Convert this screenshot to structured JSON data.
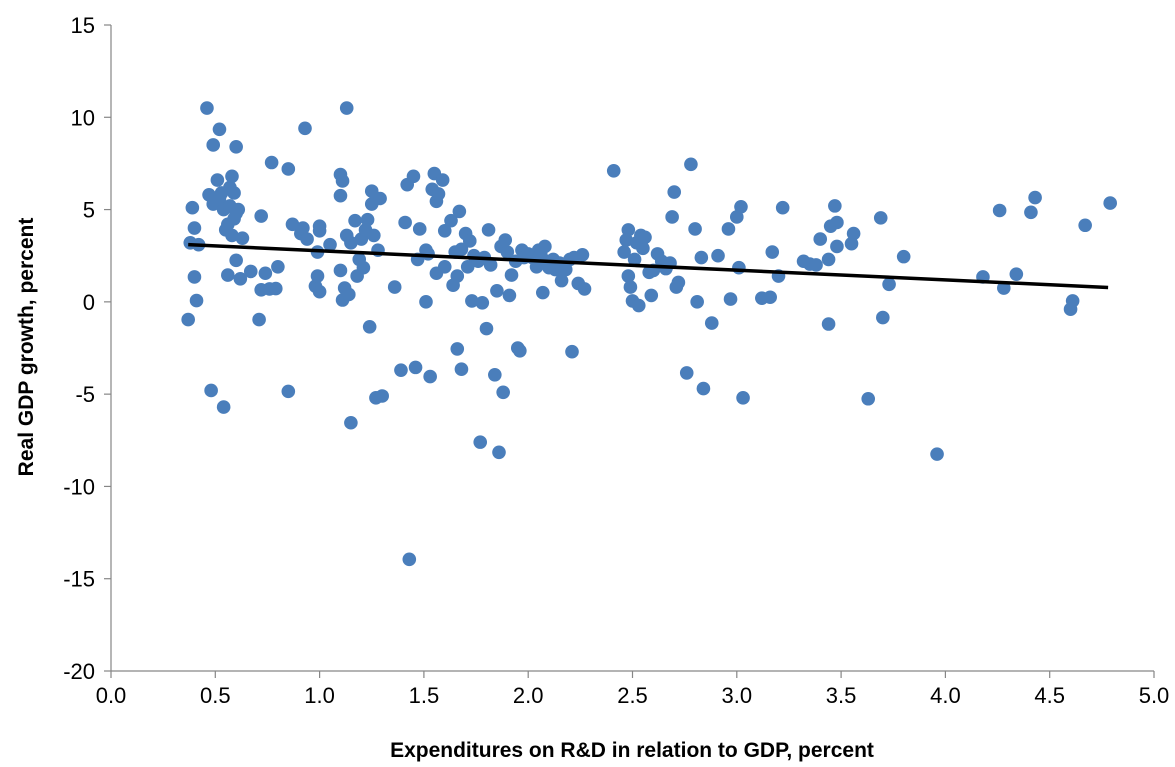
{
  "chart_data": {
    "type": "scatter",
    "title": "",
    "xlabel": "Expenditures on R&D in relation to GDP, percent",
    "ylabel": "Real GDP growth, percent",
    "xlim": [
      0,
      5
    ],
    "ylim": [
      -20,
      15
    ],
    "x_ticks": [
      "0.0",
      "0.5",
      "1.0",
      "1.5",
      "2.0",
      "2.5",
      "3.0",
      "3.5",
      "4.0",
      "4.5",
      "5.0"
    ],
    "y_ticks": [
      "15",
      "10",
      "5",
      "0",
      "-5",
      "-10",
      "-15",
      "-20"
    ],
    "grid": false,
    "legend": "none",
    "point_color": "#4a7ebb",
    "trendline_color": "#000000",
    "trendline": {
      "x": [
        0.37,
        4.78
      ],
      "y": [
        3.1,
        0.78
      ]
    },
    "points": [
      [
        0.37,
        -0.96
      ],
      [
        0.38,
        3.2
      ],
      [
        0.39,
        5.1
      ],
      [
        0.4,
        1.35
      ],
      [
        0.4,
        4.0
      ],
      [
        0.41,
        0.07
      ],
      [
        0.42,
        3.1
      ],
      [
        0.46,
        10.5
      ],
      [
        0.47,
        5.8
      ],
      [
        0.48,
        -4.8
      ],
      [
        0.49,
        8.5
      ],
      [
        0.49,
        5.3
      ],
      [
        0.51,
        6.6
      ],
      [
        0.52,
        9.35
      ],
      [
        0.52,
        5.6
      ],
      [
        0.53,
        5.9
      ],
      [
        0.54,
        5.0
      ],
      [
        0.54,
        -5.7
      ],
      [
        0.55,
        3.9
      ],
      [
        0.56,
        1.45
      ],
      [
        0.56,
        4.2
      ],
      [
        0.57,
        5.2
      ],
      [
        0.57,
        6.2
      ],
      [
        0.58,
        6.8
      ],
      [
        0.58,
        3.6
      ],
      [
        0.59,
        5.9
      ],
      [
        0.59,
        4.5
      ],
      [
        0.6,
        8.4
      ],
      [
        0.6,
        2.25
      ],
      [
        0.6,
        4.8
      ],
      [
        0.61,
        5.0
      ],
      [
        0.62,
        1.25
      ],
      [
        0.63,
        3.45
      ],
      [
        0.67,
        1.65
      ],
      [
        0.71,
        -0.96
      ],
      [
        0.72,
        4.65
      ],
      [
        0.72,
        0.65
      ],
      [
        0.74,
        1.55
      ],
      [
        0.76,
        0.7
      ],
      [
        0.77,
        7.55
      ],
      [
        0.79,
        0.72
      ],
      [
        0.8,
        1.9
      ],
      [
        0.85,
        7.2
      ],
      [
        0.85,
        -4.85
      ],
      [
        0.87,
        4.2
      ],
      [
        0.91,
        3.7
      ],
      [
        0.92,
        4.0
      ],
      [
        0.93,
        9.4
      ],
      [
        0.94,
        3.4
      ],
      [
        0.98,
        0.85
      ],
      [
        0.99,
        2.7
      ],
      [
        0.99,
        1.4
      ],
      [
        1.0,
        4.1
      ],
      [
        1.0,
        3.85
      ],
      [
        1.0,
        0.55
      ],
      [
        1.05,
        3.1
      ],
      [
        1.1,
        1.7
      ],
      [
        1.1,
        6.9
      ],
      [
        1.1,
        5.75
      ],
      [
        1.11,
        6.55
      ],
      [
        1.11,
        0.1
      ],
      [
        1.12,
        0.75
      ],
      [
        1.13,
        3.6
      ],
      [
        1.13,
        10.5
      ],
      [
        1.14,
        0.4
      ],
      [
        1.15,
        -6.55
      ],
      [
        1.15,
        3.2
      ],
      [
        1.17,
        4.4
      ],
      [
        1.18,
        1.4
      ],
      [
        1.19,
        2.3
      ],
      [
        1.2,
        3.4
      ],
      [
        1.21,
        1.85
      ],
      [
        1.22,
        3.9
      ],
      [
        1.23,
        4.45
      ],
      [
        1.24,
        -1.35
      ],
      [
        1.25,
        5.3
      ],
      [
        1.25,
        6.0
      ],
      [
        1.26,
        3.6
      ],
      [
        1.27,
        -5.2
      ],
      [
        1.28,
        2.8
      ],
      [
        1.29,
        5.6
      ],
      [
        1.3,
        -5.1
      ],
      [
        1.36,
        0.8
      ],
      [
        1.39,
        -3.7
      ],
      [
        1.41,
        4.3
      ],
      [
        1.42,
        6.35
      ],
      [
        1.43,
        -13.95
      ],
      [
        1.45,
        6.8
      ],
      [
        1.46,
        -3.55
      ],
      [
        1.47,
        2.3
      ],
      [
        1.48,
        3.95
      ],
      [
        1.51,
        0.0
      ],
      [
        1.51,
        2.8
      ],
      [
        1.52,
        2.6
      ],
      [
        1.53,
        -4.05
      ],
      [
        1.54,
        6.1
      ],
      [
        1.55,
        6.95
      ],
      [
        1.56,
        5.45
      ],
      [
        1.56,
        1.55
      ],
      [
        1.57,
        5.85
      ],
      [
        1.59,
        6.6
      ],
      [
        1.6,
        1.9
      ],
      [
        1.6,
        3.85
      ],
      [
        1.63,
        4.4
      ],
      [
        1.64,
        0.9
      ],
      [
        1.65,
        2.7
      ],
      [
        1.66,
        -2.55
      ],
      [
        1.66,
        1.4
      ],
      [
        1.67,
        4.9
      ],
      [
        1.68,
        -3.65
      ],
      [
        1.68,
        2.85
      ],
      [
        1.7,
        3.7
      ],
      [
        1.71,
        1.9
      ],
      [
        1.72,
        3.3
      ],
      [
        1.73,
        0.05
      ],
      [
        1.74,
        2.5
      ],
      [
        1.76,
        2.2
      ],
      [
        1.77,
        -7.6
      ],
      [
        1.78,
        -0.05
      ],
      [
        1.79,
        2.4
      ],
      [
        1.8,
        -1.45
      ],
      [
        1.81,
        3.9
      ],
      [
        1.82,
        2.0
      ],
      [
        1.84,
        -3.95
      ],
      [
        1.85,
        0.6
      ],
      [
        1.86,
        -8.15
      ],
      [
        1.87,
        3.0
      ],
      [
        1.88,
        -4.9
      ],
      [
        1.89,
        3.35
      ],
      [
        1.9,
        2.7
      ],
      [
        1.91,
        0.35
      ],
      [
        1.92,
        1.45
      ],
      [
        1.94,
        2.2
      ],
      [
        1.95,
        -2.5
      ],
      [
        1.96,
        -2.65
      ],
      [
        1.97,
        2.8
      ],
      [
        1.98,
        2.4
      ],
      [
        2.0,
        2.6
      ],
      [
        2.02,
        2.4
      ],
      [
        2.04,
        1.9
      ],
      [
        2.05,
        2.8
      ],
      [
        2.06,
        2.6
      ],
      [
        2.07,
        0.5
      ],
      [
        2.08,
        3.0
      ],
      [
        2.09,
        2.2
      ],
      [
        2.1,
        1.85
      ],
      [
        2.12,
        2.3
      ],
      [
        2.13,
        1.75
      ],
      [
        2.15,
        2.1
      ],
      [
        2.16,
        1.15
      ],
      [
        2.18,
        1.75
      ],
      [
        2.2,
        2.3
      ],
      [
        2.21,
        -2.7
      ],
      [
        2.22,
        2.4
      ],
      [
        2.24,
        1.0
      ],
      [
        2.26,
        2.55
      ],
      [
        2.27,
        0.7
      ],
      [
        2.41,
        7.1
      ],
      [
        2.46,
        2.7
      ],
      [
        2.47,
        3.35
      ],
      [
        2.48,
        1.4
      ],
      [
        2.48,
        3.9
      ],
      [
        2.49,
        0.8
      ],
      [
        2.5,
        0.05
      ],
      [
        2.51,
        2.3
      ],
      [
        2.52,
        3.2
      ],
      [
        2.53,
        -0.2
      ],
      [
        2.54,
        3.6
      ],
      [
        2.55,
        2.9
      ],
      [
        2.56,
        3.5
      ],
      [
        2.58,
        1.6
      ],
      [
        2.59,
        0.35
      ],
      [
        2.6,
        1.7
      ],
      [
        2.62,
        2.6
      ],
      [
        2.64,
        2.2
      ],
      [
        2.66,
        1.8
      ],
      [
        2.68,
        2.1
      ],
      [
        2.69,
        4.6
      ],
      [
        2.7,
        5.95
      ],
      [
        2.71,
        0.8
      ],
      [
        2.72,
        1.05
      ],
      [
        2.76,
        -3.85
      ],
      [
        2.78,
        7.45
      ],
      [
        2.8,
        3.95
      ],
      [
        2.81,
        0.0
      ],
      [
        2.83,
        2.4
      ],
      [
        2.84,
        -4.7
      ],
      [
        2.88,
        -1.15
      ],
      [
        2.91,
        2.5
      ],
      [
        2.96,
        3.95
      ],
      [
        2.97,
        0.15
      ],
      [
        3.0,
        4.6
      ],
      [
        3.01,
        1.85
      ],
      [
        3.02,
        5.15
      ],
      [
        3.03,
        -5.2
      ],
      [
        3.12,
        0.2
      ],
      [
        3.16,
        0.25
      ],
      [
        3.17,
        2.7
      ],
      [
        3.2,
        1.4
      ],
      [
        3.22,
        5.1
      ],
      [
        3.32,
        2.2
      ],
      [
        3.35,
        2.05
      ],
      [
        3.38,
        2.0
      ],
      [
        3.4,
        3.4
      ],
      [
        3.44,
        -1.2
      ],
      [
        3.44,
        2.3
      ],
      [
        3.45,
        4.1
      ],
      [
        3.47,
        5.2
      ],
      [
        3.48,
        3.0
      ],
      [
        3.48,
        4.3
      ],
      [
        3.55,
        3.15
      ],
      [
        3.56,
        3.7
      ],
      [
        3.63,
        -5.25
      ],
      [
        3.69,
        4.55
      ],
      [
        3.7,
        -0.85
      ],
      [
        3.73,
        0.95
      ],
      [
        3.8,
        2.45
      ],
      [
        3.96,
        -8.25
      ],
      [
        4.18,
        1.35
      ],
      [
        4.26,
        4.95
      ],
      [
        4.28,
        0.75
      ],
      [
        4.34,
        1.5
      ],
      [
        4.41,
        4.85
      ],
      [
        4.43,
        5.65
      ],
      [
        4.6,
        -0.4
      ],
      [
        4.61,
        0.05
      ],
      [
        4.67,
        4.15
      ],
      [
        4.79,
        5.35
      ]
    ]
  }
}
